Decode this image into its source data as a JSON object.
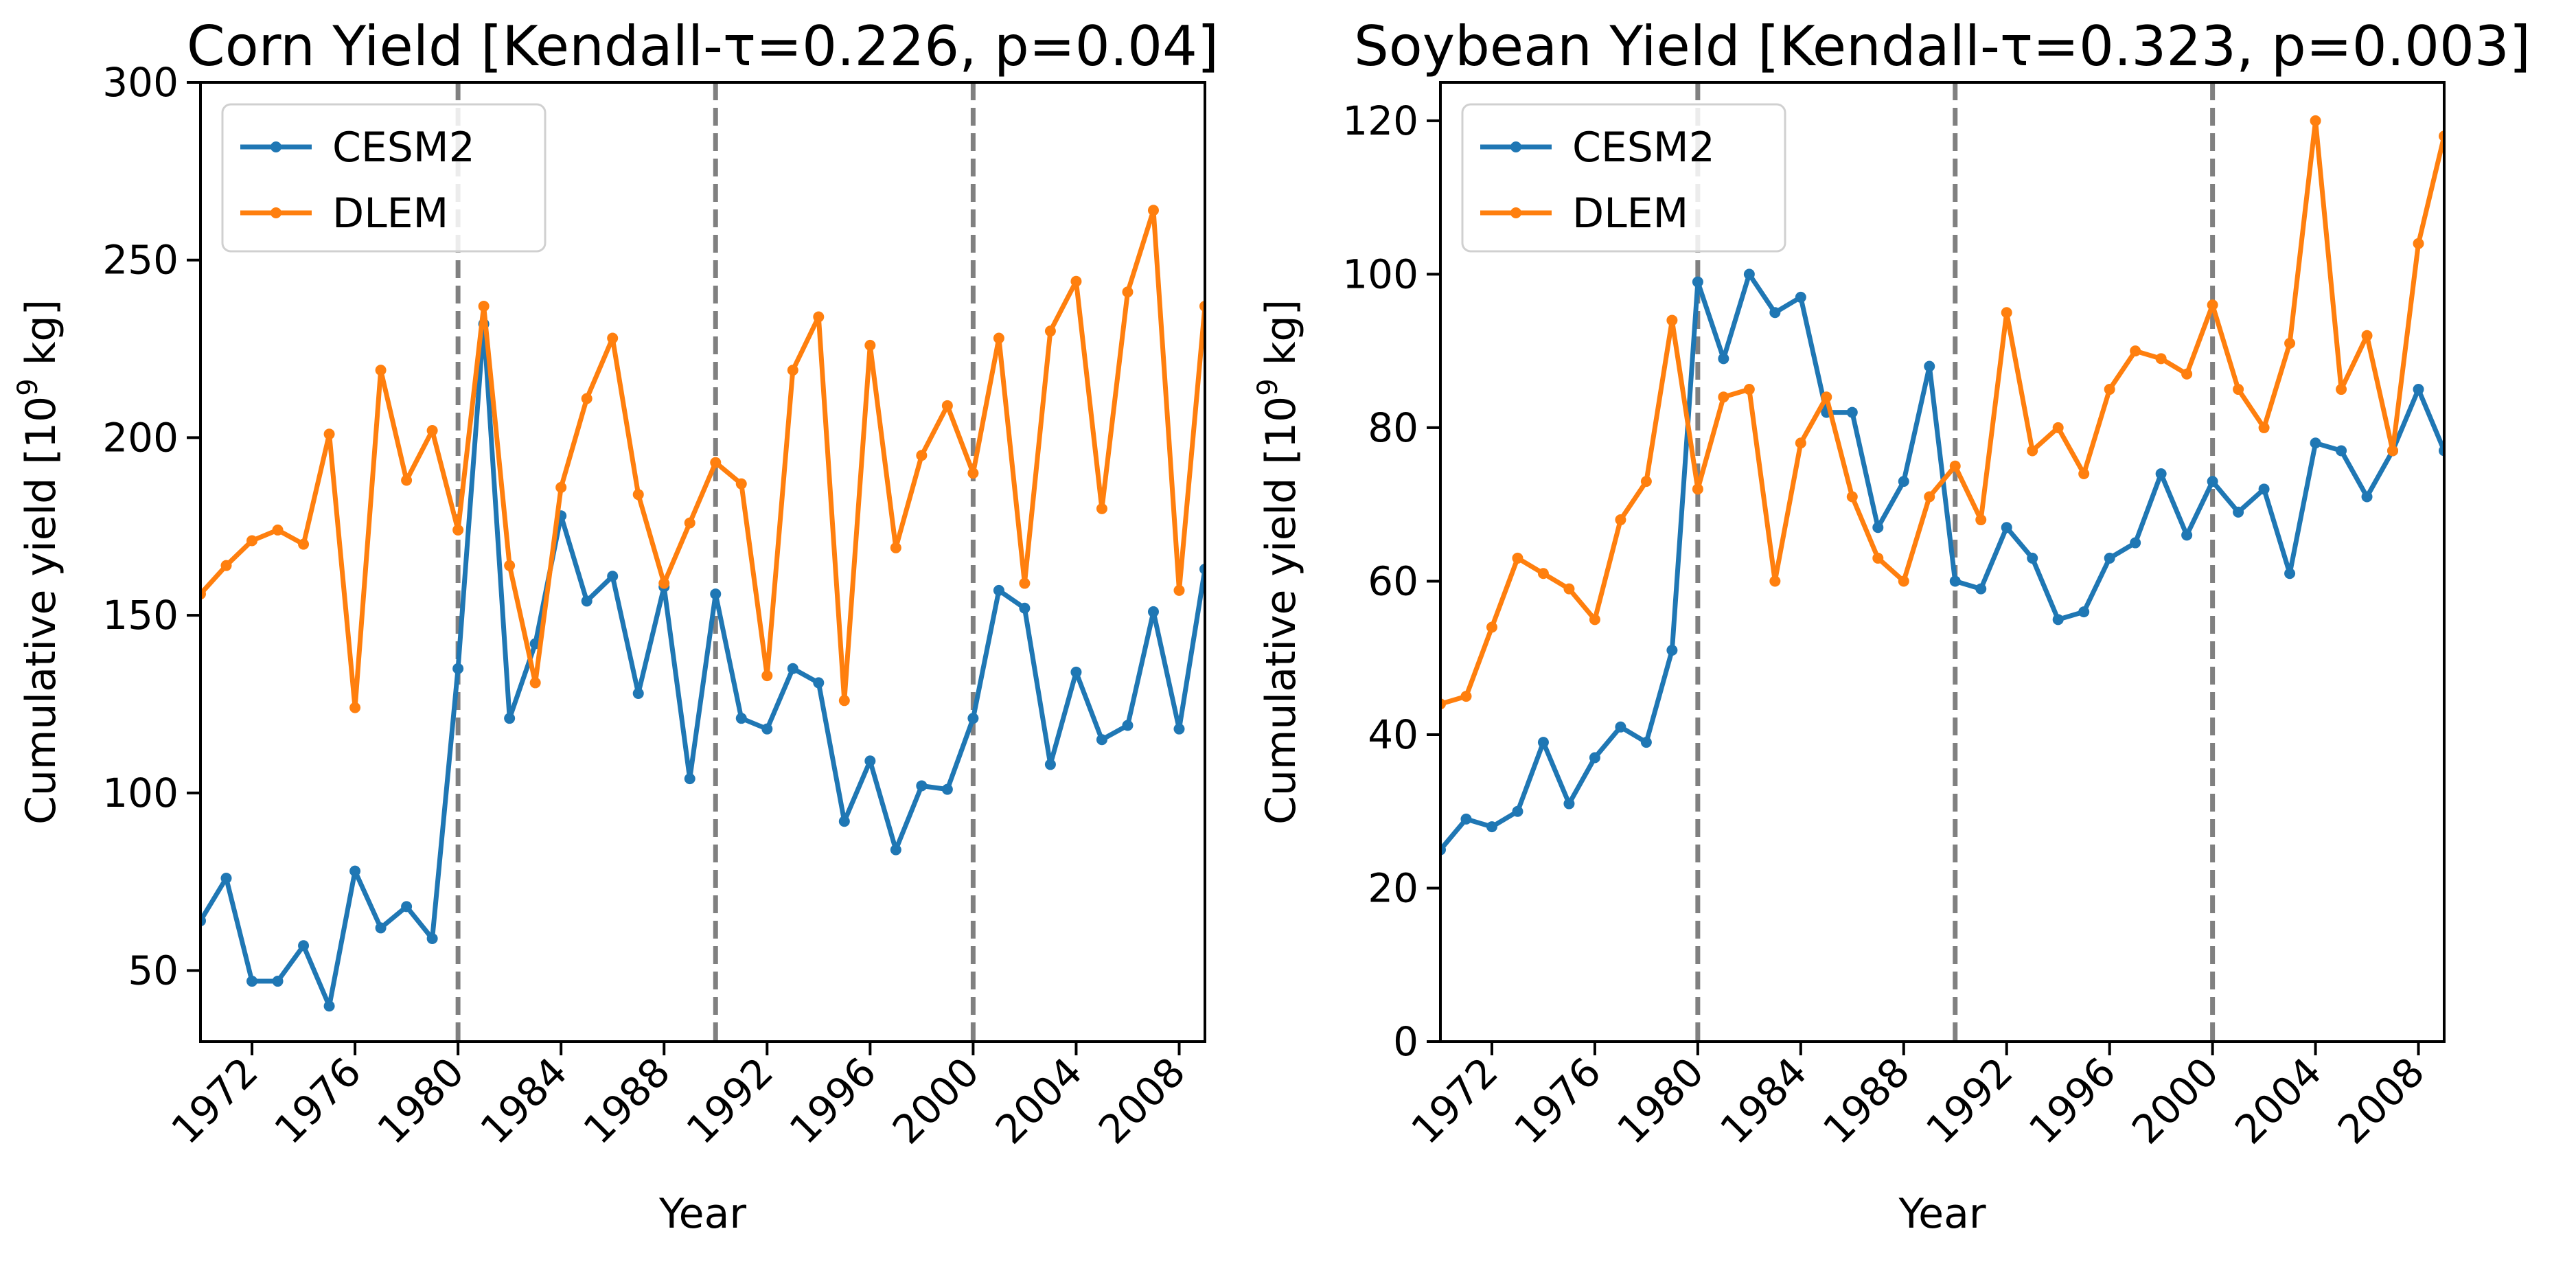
{
  "figure": {
    "colors": {
      "CESM2": "#1f77b4",
      "DLEM": "#ff7f0e",
      "vline": "#808080"
    },
    "legend_position": "upper-left",
    "vertical_dashed_lines": [
      1980,
      1990,
      2000
    ]
  },
  "chart_data": [
    {
      "type": "line",
      "title": "Corn Yield [Kendall-τ=0.226, p=0.04]",
      "xlabel": "Year",
      "ylabel": "Cumulative yield [10",
      "ylabel_sup": "9",
      "ylabel_tail": " kg]",
      "xlim": [
        1970,
        2009
      ],
      "ylim": [
        30,
        300
      ],
      "xticks": [
        "1972",
        "1976",
        "1980",
        "1984",
        "1988",
        "1992",
        "1996",
        "2000",
        "2004",
        "2008"
      ],
      "yticks": [
        "50",
        "100",
        "150",
        "200",
        "250",
        "300"
      ],
      "x": [
        1970,
        1971,
        1972,
        1973,
        1974,
        1975,
        1976,
        1977,
        1978,
        1979,
        1980,
        1981,
        1982,
        1983,
        1984,
        1985,
        1986,
        1987,
        1988,
        1989,
        1990,
        1991,
        1992,
        1993,
        1994,
        1995,
        1996,
        1997,
        1998,
        1999,
        2000,
        2001,
        2002,
        2003,
        2004,
        2005,
        2006,
        2007,
        2008,
        2009
      ],
      "series": [
        {
          "name": "CESM2",
          "values": [
            64,
            76,
            47,
            47,
            57,
            40,
            78,
            62,
            68,
            59,
            135,
            232,
            121,
            142,
            178,
            154,
            161,
            128,
            158,
            104,
            156,
            121,
            118,
            135,
            131,
            92,
            109,
            84,
            102,
            101,
            121,
            157,
            152,
            108,
            134,
            115,
            119,
            151,
            118,
            163
          ]
        },
        {
          "name": "DLEM",
          "values": [
            156,
            164,
            171,
            174,
            170,
            201,
            124,
            219,
            188,
            202,
            174,
            237,
            164,
            131,
            186,
            211,
            228,
            184,
            159,
            176,
            193,
            187,
            133,
            219,
            234,
            126,
            226,
            169,
            195,
            209,
            190,
            228,
            159,
            230,
            244,
            180,
            241,
            264,
            157,
            237
          ]
        }
      ]
    },
    {
      "type": "line",
      "title": "Soybean Yield [Kendall-τ=0.323, p=0.003]",
      "xlabel": "Year",
      "ylabel": "Cumulative yield [10",
      "ylabel_sup": "9",
      "ylabel_tail": " kg]",
      "xlim": [
        1970,
        2009
      ],
      "ylim": [
        0,
        125
      ],
      "xticks": [
        "1972",
        "1976",
        "1980",
        "1984",
        "1988",
        "1992",
        "1996",
        "2000",
        "2004",
        "2008"
      ],
      "yticks": [
        "0",
        "20",
        "40",
        "60",
        "80",
        "100",
        "120"
      ],
      "x": [
        1970,
        1971,
        1972,
        1973,
        1974,
        1975,
        1976,
        1977,
        1978,
        1979,
        1980,
        1981,
        1982,
        1983,
        1984,
        1985,
        1986,
        1987,
        1988,
        1989,
        1990,
        1991,
        1992,
        1993,
        1994,
        1995,
        1996,
        1997,
        1998,
        1999,
        2000,
        2001,
        2002,
        2003,
        2004,
        2005,
        2006,
        2007,
        2008,
        2009
      ],
      "series": [
        {
          "name": "CESM2",
          "values": [
            25,
            29,
            28,
            30,
            39,
            31,
            37,
            41,
            39,
            51,
            99,
            89,
            100,
            95,
            97,
            82,
            82,
            67,
            73,
            88,
            60,
            59,
            67,
            63,
            55,
            56,
            63,
            65,
            74,
            66,
            73,
            69,
            72,
            61,
            78,
            77,
            71,
            77,
            85,
            77
          ]
        },
        {
          "name": "DLEM",
          "values": [
            44,
            45,
            54,
            63,
            61,
            59,
            55,
            68,
            73,
            94,
            72,
            84,
            85,
            60,
            78,
            84,
            71,
            63,
            60,
            71,
            75,
            68,
            95,
            77,
            80,
            74,
            85,
            90,
            89,
            87,
            96,
            85,
            80,
            91,
            120,
            85,
            92,
            77,
            104,
            118
          ]
        }
      ]
    }
  ]
}
